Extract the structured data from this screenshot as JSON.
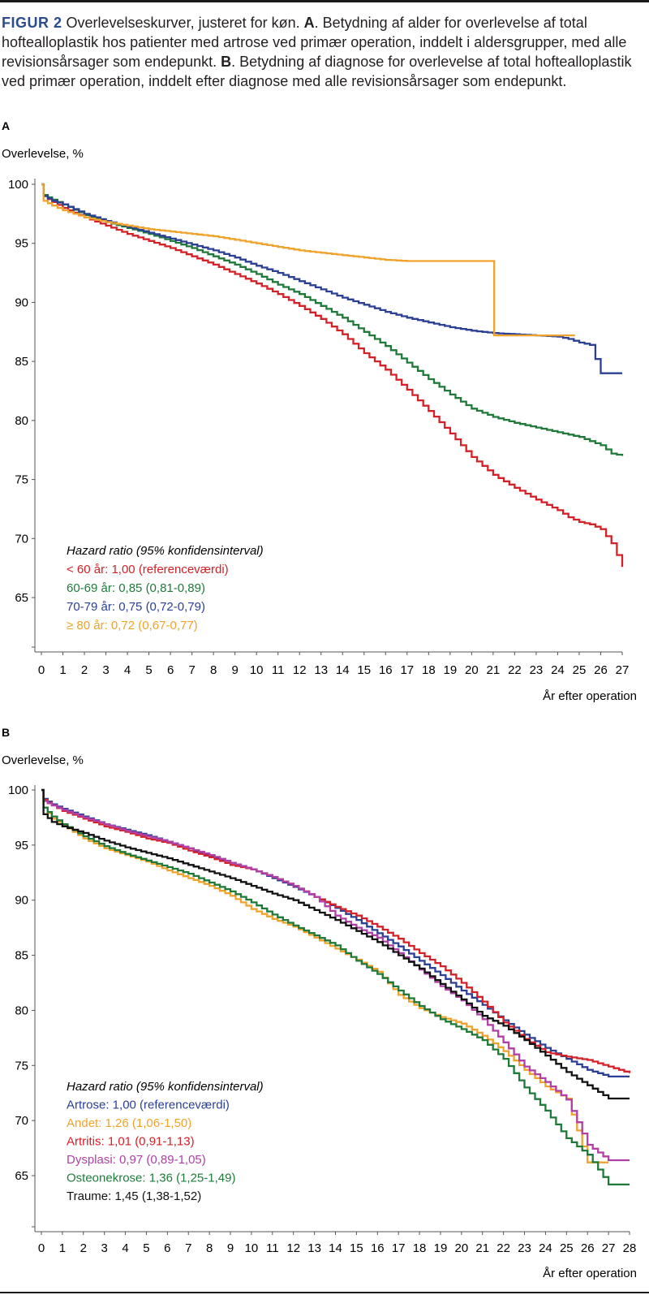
{
  "caption": {
    "figure_label": "FIGUR 2",
    "text_1": " Overlevelseskurver, justeret for køn. ",
    "bold_a": "A",
    "text_2": ". Betydning af alder for overlevelse af total hoftealloplastik hos patienter med artrose ved primær operation, inddelt i aldersgrupper, med alle revisionsårsager som endepunkt. ",
    "bold_b": "B",
    "text_3": ". Betydning af diagnose for overlevelse af total hoftealloplastik ved primær operation, inddelt efter diagnose med alle revisionsårsager som endepunkt."
  },
  "chart_data": [
    {
      "panel": "A",
      "type": "line",
      "ylabel": "Overlevelse, %",
      "xlabel": "År efter operation",
      "xlim": [
        0,
        27
      ],
      "ylim": [
        60,
        100
      ],
      "yticks": [
        "100",
        "95",
        "90",
        "85",
        "80",
        "75",
        "70",
        "65"
      ],
      "xticks": [
        "0",
        "1",
        "2",
        "3",
        "4",
        "5",
        "6",
        "7",
        "8",
        "9",
        "10",
        "11",
        "12",
        "13",
        "14",
        "15",
        "16",
        "17",
        "18",
        "19",
        "20",
        "21",
        "22",
        "23",
        "24",
        "25",
        "26",
        "27"
      ],
      "legend_title": "Hazard ratio (95% konfidensinterval)",
      "series": [
        {
          "name": "< 60 år: 1,00 (referenceværdi)",
          "color": "#d42027",
          "x": [
            0,
            0.1,
            0.5,
            1,
            2,
            3,
            4,
            5,
            6,
            7,
            8,
            9,
            10,
            11,
            12,
            13,
            14,
            15,
            16,
            17,
            18,
            19,
            20,
            21,
            22,
            23,
            24,
            24.5,
            25,
            25.5,
            26,
            26.5,
            27
          ],
          "y": [
            100,
            99,
            98.5,
            98,
            97.2,
            96.5,
            95.8,
            95.2,
            94.6,
            93.9,
            93.2,
            92.4,
            91.6,
            90.7,
            89.7,
            88.6,
            87.3,
            85.7,
            84.3,
            82.6,
            80.8,
            78.9,
            76.9,
            75.4,
            74.3,
            73.3,
            72.4,
            71.8,
            71.4,
            71.2,
            70.8,
            69.6,
            67.6
          ]
        },
        {
          "name": "60-69 år: 0,85 (0,81-0,89)",
          "color": "#1f7a3a",
          "x": [
            0,
            0.1,
            0.5,
            1,
            2,
            3,
            4,
            5,
            6,
            7,
            8,
            9,
            10,
            11,
            12,
            13,
            14,
            15,
            16,
            17,
            18,
            19,
            20,
            21,
            22,
            23,
            24,
            25,
            26,
            26.5,
            27
          ],
          "y": [
            100,
            99.1,
            98.7,
            98.3,
            97.4,
            96.8,
            96.3,
            95.8,
            95.2,
            94.6,
            93.9,
            93.2,
            92.4,
            91.5,
            90.7,
            89.7,
            88.7,
            87.5,
            86.3,
            84.9,
            83.5,
            82.2,
            81,
            80.3,
            79.8,
            79.4,
            79,
            78.6,
            77.9,
            77.2,
            77
          ]
        },
        {
          "name": "70-79 år: 0,75 (0,72-0,79)",
          "color": "#2b3f94",
          "x": [
            0,
            0.1,
            0.5,
            1,
            2,
            3,
            4,
            5,
            6,
            7,
            8,
            9,
            10,
            11,
            12,
            13,
            14,
            15,
            16,
            17,
            18,
            19,
            20,
            21,
            22,
            23,
            24,
            24.5,
            25,
            25.5,
            26,
            26.5,
            27
          ],
          "y": [
            100,
            99,
            98.6,
            98.3,
            97.5,
            96.9,
            96.4,
            95.9,
            95.4,
            94.9,
            94.4,
            93.8,
            93.1,
            92.5,
            91.8,
            91.1,
            90.4,
            89.8,
            89.2,
            88.7,
            88.3,
            87.9,
            87.6,
            87.4,
            87.3,
            87.2,
            87.1,
            86.9,
            86.6,
            86.4,
            84,
            84,
            84
          ]
        },
        {
          "name": "≥ 80 år: 0,72 (0,67-0,77)",
          "color": "#f0a32c",
          "x": [
            0,
            0.1,
            0.5,
            1,
            2,
            3,
            4,
            5,
            6,
            7,
            8,
            9,
            10,
            11,
            12,
            13,
            14,
            15,
            16,
            17,
            18,
            19,
            20,
            21,
            21.05,
            22,
            23,
            24,
            24.8
          ],
          "y": [
            100,
            98.6,
            98.2,
            97.8,
            97.2,
            96.8,
            96.5,
            96.2,
            96,
            95.8,
            95.6,
            95.3,
            95,
            94.7,
            94.4,
            94.2,
            94,
            93.8,
            93.6,
            93.5,
            93.5,
            93.5,
            93.5,
            93.5,
            87.2,
            87.2,
            87.2,
            87.2,
            87.2
          ]
        }
      ]
    },
    {
      "panel": "B",
      "type": "line",
      "ylabel": "Overlevelse, %",
      "xlabel": "År efter operation",
      "xlim": [
        0,
        28
      ],
      "ylim": [
        60,
        100
      ],
      "yticks": [
        "100",
        "95",
        "90",
        "85",
        "80",
        "75",
        "70",
        "65"
      ],
      "xticks": [
        "0",
        "1",
        "2",
        "3",
        "4",
        "5",
        "6",
        "7",
        "8",
        "9",
        "10",
        "11",
        "12",
        "13",
        "14",
        "15",
        "16",
        "17",
        "18",
        "19",
        "20",
        "21",
        "22",
        "23",
        "24",
        "25",
        "26",
        "27",
        "28"
      ],
      "legend_title": "Hazard ratio (95% konfidensinterval)",
      "series": [
        {
          "name": "Artrose: 1,00 (referenceværdi)",
          "color": "#2b3f94",
          "x": [
            0,
            0.1,
            0.5,
            1,
            2,
            3,
            4,
            5,
            6,
            7,
            8,
            9,
            10,
            11,
            12,
            13,
            14,
            15,
            16,
            17,
            18,
            19,
            20,
            21,
            22,
            23,
            24,
            25,
            26,
            27,
            28
          ],
          "y": [
            100,
            99.2,
            98.7,
            98.3,
            97.6,
            96.9,
            96.4,
            95.9,
            95.3,
            94.7,
            94,
            93.4,
            92.8,
            92,
            91.2,
            90.3,
            89.3,
            88.2,
            87,
            85.8,
            84.5,
            83.2,
            81.8,
            80.5,
            79.1,
            77.8,
            76.6,
            75.6,
            74.6,
            74,
            74
          ]
        },
        {
          "name": "Andet: 1,26 (1,06-1,50)",
          "color": "#f0a32c",
          "x": [
            0,
            0.1,
            0.5,
            1,
            2,
            3,
            4,
            5,
            6,
            7,
            8,
            9,
            10,
            11,
            12,
            13,
            14,
            15,
            16,
            17,
            18,
            19,
            20,
            21,
            22,
            23,
            24,
            25,
            26,
            27
          ],
          "y": [
            100,
            98.4,
            97.4,
            96.8,
            95.6,
            94.7,
            94.1,
            93.5,
            92.7,
            92,
            91.3,
            90.4,
            89.2,
            88.3,
            87.6,
            86.6,
            85.6,
            84.6,
            83.5,
            81.4,
            80.2,
            79.4,
            78.8,
            77.7,
            76.3,
            74.6,
            73.1,
            72,
            66.2,
            66.2
          ]
        },
        {
          "name": "Artritis: 1,01 (0,91-1,13)",
          "color": "#d42027",
          "x": [
            0,
            0.1,
            0.5,
            1,
            2,
            3,
            4,
            5,
            6,
            7,
            8,
            9,
            10,
            11,
            12,
            13,
            14,
            15,
            16,
            17,
            18,
            19,
            20,
            21,
            22,
            23,
            24,
            25,
            26,
            27,
            28
          ],
          "y": [
            100,
            99.1,
            98.6,
            98.1,
            97.4,
            96.7,
            96.2,
            95.6,
            95.2,
            94.5,
            93.9,
            93.2,
            92.8,
            92.1,
            91.3,
            90.3,
            89.4,
            88.6,
            87.6,
            86.5,
            85.2,
            84,
            82.5,
            80.8,
            78.9,
            77.4,
            76.2,
            75.8,
            75.5,
            74.9,
            74.3
          ]
        },
        {
          "name": "Dysplasi: 0,97 (0,89-1,05)",
          "color": "#b13fa6",
          "x": [
            0,
            0.1,
            0.5,
            1,
            2,
            3,
            4,
            5,
            6,
            7,
            8,
            9,
            10,
            11,
            12,
            13,
            14,
            15,
            16,
            17,
            18,
            19,
            20,
            21,
            22,
            23,
            24,
            25,
            26,
            27,
            28
          ],
          "y": [
            100,
            99,
            98.6,
            98.2,
            97.5,
            96.9,
            96.3,
            95.8,
            95.3,
            94.7,
            94.1,
            93.4,
            92.8,
            92.1,
            91.3,
            90.3,
            88.6,
            87.5,
            86.6,
            85.2,
            83.7,
            82.2,
            80.9,
            79.2,
            77.1,
            74.9,
            73.5,
            71.9,
            67.8,
            66.4,
            66.4
          ]
        },
        {
          "name": "Osteonekrose: 1,36 (1,25-1,49)",
          "color": "#1f7a3a",
          "x": [
            0,
            0.1,
            0.5,
            1,
            2,
            3,
            4,
            5,
            6,
            7,
            8,
            9,
            10,
            11,
            12,
            13,
            14,
            15,
            16,
            17,
            18,
            19,
            20,
            21,
            22,
            23,
            24,
            25,
            26,
            27,
            28
          ],
          "y": [
            100,
            98.4,
            97.6,
            96.9,
            95.8,
            94.9,
            94.2,
            93.6,
            93,
            92.4,
            91.6,
            90.8,
            89.8,
            88.7,
            87.7,
            86.8,
            85.9,
            84.5,
            83.3,
            81.8,
            80.4,
            79.2,
            78.3,
            77.3,
            75.6,
            73,
            70.9,
            68.4,
            66.9,
            64.2,
            64.2
          ]
        },
        {
          "name": "Traume: 1,45 (1,38-1,52)",
          "color": "#111111",
          "x": [
            0,
            0.1,
            0.5,
            1,
            2,
            3,
            4,
            5,
            6,
            7,
            8,
            9,
            10,
            11,
            12,
            13,
            14,
            15,
            16,
            17,
            18,
            19,
            20,
            21,
            22,
            23,
            24,
            25,
            26,
            27,
            28
          ],
          "y": [
            100,
            97.8,
            97.1,
            96.7,
            96.1,
            95.4,
            94.8,
            94.3,
            93.8,
            93.2,
            92.6,
            92,
            91.3,
            90.6,
            90,
            89.1,
            88.2,
            87.2,
            86.2,
            85,
            83.8,
            82.4,
            81,
            79.5,
            78.6,
            77.3,
            75.9,
            74.4,
            73.2,
            72,
            72
          ]
        }
      ]
    }
  ]
}
